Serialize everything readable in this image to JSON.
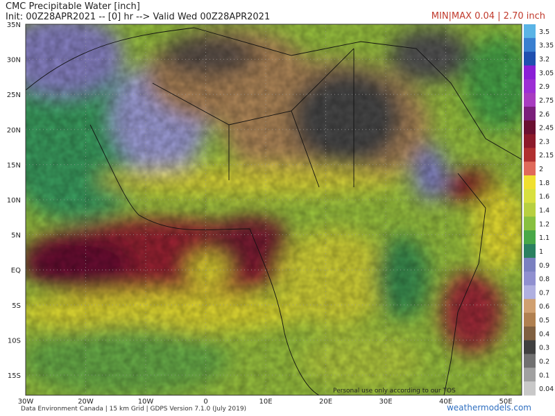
{
  "header": {
    "title": "CMC Precipitable Water [inch]",
    "subtitle": "Init: 00Z28APR2021 -- [0] hr --> Valid Wed 00Z28APR2021",
    "minmax": "MIN|MAX 0.04 | 2.70 inch"
  },
  "latitudes": [
    "35N",
    "30N",
    "25N",
    "20N",
    "15N",
    "10N",
    "5N",
    "EQ",
    "5S",
    "10S",
    "15S"
  ],
  "longitudes": [
    "30W",
    "20W",
    "10W",
    "0",
    "10E",
    "20E",
    "30E",
    "40E",
    "50E"
  ],
  "colorbar": [
    {
      "label": "3.5",
      "color": "#5ab4e6"
    },
    {
      "label": "3.35",
      "color": "#3a7fd0"
    },
    {
      "label": "3.2",
      "color": "#1f4fb0"
    },
    {
      "label": "3.05",
      "color": "#8a1fd6"
    },
    {
      "label": "2.9",
      "color": "#9c2ed4"
    },
    {
      "label": "2.75",
      "color": "#a83cc0"
    },
    {
      "label": "2.6",
      "color": "#7a1f7a"
    },
    {
      "label": "2.45",
      "color": "#6a1030"
    },
    {
      "label": "2.3",
      "color": "#8c1a2a"
    },
    {
      "label": "2.15",
      "color": "#b03030"
    },
    {
      "label": "2",
      "color": "#e06a5a"
    },
    {
      "label": "1.8",
      "color": "#f0e030"
    },
    {
      "label": "1.6",
      "color": "#d8e040"
    },
    {
      "label": "1.4",
      "color": "#b8d040"
    },
    {
      "label": "1.2",
      "color": "#88c040"
    },
    {
      "label": "1.1",
      "color": "#48a848"
    },
    {
      "label": "1",
      "color": "#2a8060"
    },
    {
      "label": "0.9",
      "color": "#7a80c0"
    },
    {
      "label": "0.8",
      "color": "#9090d0"
    },
    {
      "label": "0.7",
      "color": "#b0b0e0"
    },
    {
      "label": "0.6",
      "color": "#d0a070"
    },
    {
      "label": "0.5",
      "color": "#b08050"
    },
    {
      "label": "0.4",
      "color": "#806040"
    },
    {
      "label": "0.3",
      "color": "#404040"
    },
    {
      "label": "0.2",
      "color": "#707070"
    },
    {
      "label": "0.1",
      "color": "#a0a0a0"
    },
    {
      "label": "0.04",
      "color": "#c8c8c8"
    }
  ],
  "footer": {
    "credit": "Data Environment Canada | 15 km Grid | GDPS Version 7.1.0 (July 2019)",
    "brand": "weathermodels.com",
    "tos": "Personal use only according to our TOS"
  }
}
